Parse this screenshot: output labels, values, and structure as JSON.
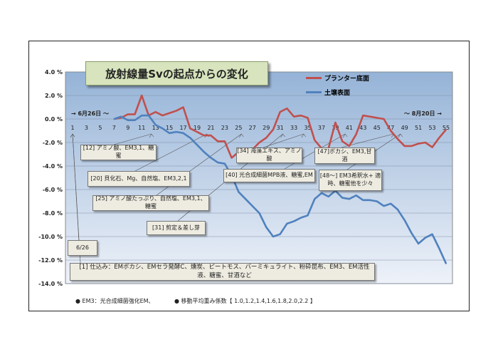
{
  "chart_data": {
    "type": "line",
    "title": "放射線量Svの起点からの変化",
    "x": [
      7,
      8,
      9,
      10,
      11,
      12,
      13,
      14,
      15,
      16,
      17,
      18,
      19,
      20,
      21,
      22,
      23,
      24,
      25,
      26,
      27,
      28,
      29,
      30,
      31,
      32,
      33,
      34,
      35,
      36,
      37,
      38,
      39,
      40,
      41,
      42,
      43,
      44,
      45,
      46,
      47,
      48,
      49,
      50,
      51,
      52,
      53,
      54,
      55
    ],
    "xticks": [
      1,
      3,
      5,
      7,
      9,
      11,
      13,
      15,
      17,
      19,
      21,
      23,
      25,
      27,
      29,
      31,
      33,
      35,
      37,
      39,
      41,
      43,
      45,
      47,
      49,
      51,
      53,
      55
    ],
    "xlim": [
      1,
      55
    ],
    "ylim": [
      -14,
      4
    ],
    "yticks": [
      "4.0 %",
      "2.0 %",
      "0.0 %",
      "-2.0 %",
      "-4.0 %",
      "-6.0 %",
      "-8.0 %",
      "-10.0 %",
      "-12.0 %",
      "-14.0 %"
    ],
    "ytick_values": [
      4,
      2,
      0,
      -2,
      -4,
      -6,
      -8,
      -10,
      -12,
      -14
    ],
    "grid": true,
    "legend_position": "top-right",
    "series": [
      {
        "name": "プランター底面",
        "color": "#c0504d",
        "values": [
          0,
          0.1,
          0.4,
          0.4,
          2.0,
          0.3,
          0.6,
          0.3,
          0.5,
          0.7,
          1.0,
          -0.8,
          -1.1,
          -1.4,
          -1.4,
          -1.9,
          -1.9,
          -3.3,
          -2.8,
          -2.7,
          -2.6,
          -2.0,
          -1.6,
          -0.9,
          0.6,
          0.9,
          0.2,
          0.3,
          0.1,
          -1.8,
          -2.5,
          -2.5,
          -0.3,
          -1.9,
          -2.3,
          -1.3,
          0.3,
          0.2,
          0.1,
          0.0,
          -1.0,
          -1.7,
          -2.3,
          -2.3,
          -2.1,
          -2.0,
          -2.4,
          -1.6,
          -0.9
        ]
      },
      {
        "name": "土壌表面",
        "color": "#4f81bd",
        "values": [
          0,
          0.2,
          -0.1,
          -0.1,
          0.3,
          0.3,
          -0.5,
          -0.8,
          -1.2,
          -1.1,
          -1.2,
          -1.6,
          -2.2,
          -2.8,
          -3.3,
          -3.7,
          -3.8,
          -4.8,
          -6.2,
          -6.8,
          -7.4,
          -8.0,
          -9.2,
          -10.0,
          -9.8,
          -8.9,
          -8.7,
          -8.4,
          -8.2,
          -6.8,
          -6.3,
          -6.6,
          -6.1,
          -6.7,
          -6.8,
          -6.5,
          -6.9,
          -6.9,
          -7.0,
          -7.4,
          -7.2,
          -7.7,
          -8.6,
          -9.7,
          -10.6,
          -10.1,
          -9.8,
          -11.0,
          -12.3
        ]
      }
    ],
    "date_start": "→ 6月26日 ～",
    "date_end": "～ 8月20日 →",
    "annotations": [
      {
        "text": "[12] アミノ酸、EM3,1、糖蜜",
        "day": 12
      },
      {
        "text": "[20] 貝化石、Mg、自然塩、EM3,2,1",
        "day": 20
      },
      {
        "text": "[25] アミノ酸たっぷり、自然塩、EM3,1、糖蜜",
        "day": 25
      },
      {
        "text": "[31] 剪定＆差し芽",
        "day": 31
      },
      {
        "text": "[34] 海藻エキス、アミノ酸",
        "day": 34
      },
      {
        "text": "[40] 光合成細菌MPB液、糖蜜,EM",
        "day": 40
      },
      {
        "text": "[47]ボカシ、EM3,甘酒",
        "day": 47
      },
      {
        "text": "[48～] EM3希釈水+ 適時、糖蜜他を少々",
        "day": 48
      },
      {
        "text": "6/26",
        "day": 1
      },
      {
        "text": "[1] 仕込み：EMボカシ、EMセラ発酵C、燻炭、ピートモス、バーミキュライト、粉砕昆布、EM3、EM活性液、糖蜜、甘酒など",
        "day": 1
      }
    ]
  },
  "notes": [
    "● EM3：光合成細菌強化EM、",
    "● 移動平均重み係数【 1.0,1.2,1.4,1.6,1.8,2.0,2.2 】"
  ]
}
